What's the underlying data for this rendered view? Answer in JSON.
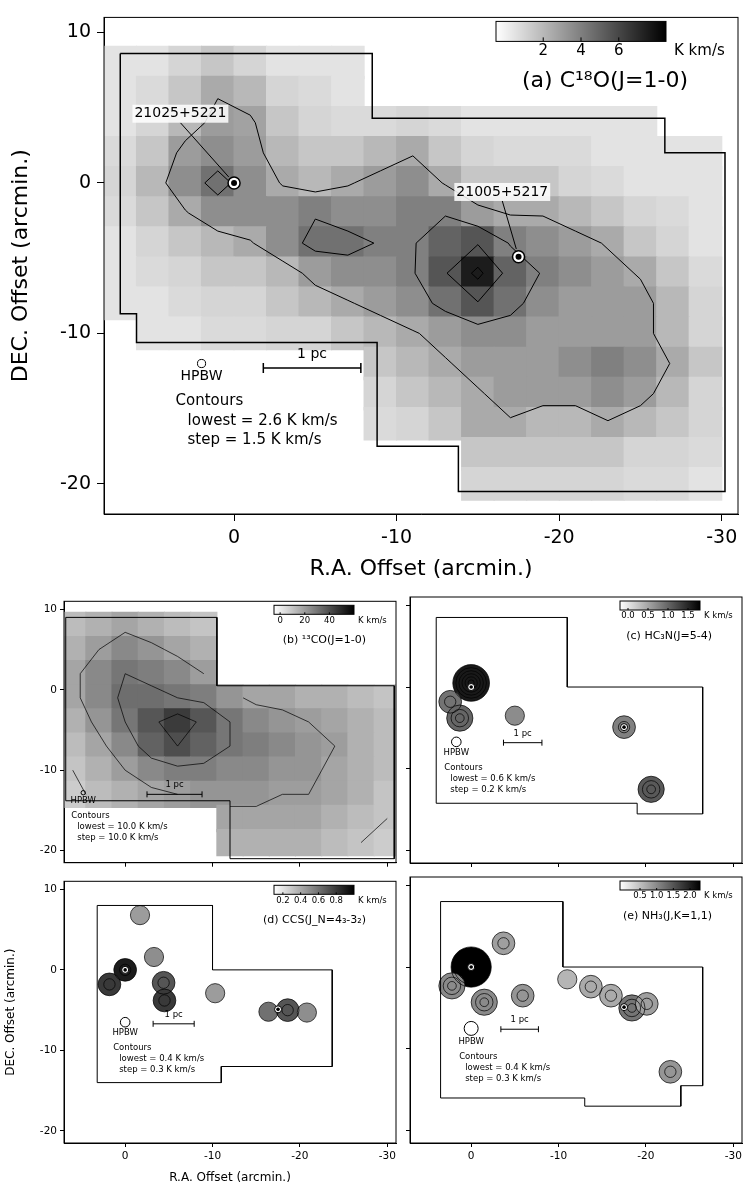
{
  "chart_data": [
    {
      "type": "heatmap",
      "title": "(a) C¹⁸O(J=1-0)",
      "xlabel": "R.A. Offset (arcmin.)",
      "ylabel": "DEC. Offset (arcmin.)",
      "xlim": [
        8,
        -31
      ],
      "ylim": [
        -22,
        11
      ],
      "xticks": [
        0,
        -10,
        -20,
        -30
      ],
      "yticks": [
        10,
        0,
        -10,
        -20
      ],
      "x": [
        7,
        5,
        3,
        1,
        -1,
        -3,
        -5,
        -7,
        -9,
        -11,
        -13,
        -15,
        -17,
        -19,
        -21,
        -23,
        -25,
        -27,
        -29
      ],
      "y": [
        8,
        6,
        4,
        2,
        0,
        -2,
        -4,
        -6,
        -8,
        -10,
        -12,
        -14,
        -16,
        -18,
        -20
      ],
      "z": [
        [
          0.5,
          0.5,
          1,
          1.5,
          1,
          0.5,
          0.5,
          0.5,
          null,
          null,
          null,
          null,
          null,
          null,
          null,
          null,
          null,
          null,
          null
        ],
        [
          0.5,
          0.8,
          1.5,
          2.5,
          2,
          1,
          0.8,
          0.5,
          null,
          null,
          null,
          null,
          null,
          null,
          null,
          null,
          null,
          null,
          null
        ],
        [
          0.5,
          1,
          2,
          3,
          2.8,
          1.5,
          1,
          0.8,
          0.8,
          1,
          0.8,
          0.5,
          0.5,
          0.5,
          0.5,
          0.5,
          0.5,
          null,
          null
        ],
        [
          0.8,
          1.5,
          3,
          3.5,
          3,
          2,
          1.5,
          1.5,
          2,
          2.5,
          1.5,
          1,
          0.8,
          0.8,
          0.8,
          0.5,
          0.5,
          0.5,
          0.5
        ],
        [
          1,
          2,
          3.5,
          4.5,
          3.5,
          2.5,
          2,
          2.5,
          3,
          3.5,
          2.5,
          1.5,
          1.5,
          1.5,
          1,
          0.8,
          0.5,
          0.5,
          0.5
        ],
        [
          0.8,
          1.5,
          2.5,
          3.5,
          3.5,
          3.5,
          4,
          3.5,
          3.5,
          4,
          4,
          3,
          2.5,
          2.5,
          2,
          1.5,
          1,
          0.8,
          0.5
        ],
        [
          0.5,
          1,
          1.5,
          2,
          2.5,
          3.5,
          4.5,
          4.5,
          4,
          4,
          5,
          5.5,
          4,
          3.5,
          3,
          2.5,
          1.5,
          1,
          0.5
        ],
        [
          0.5,
          0.8,
          1,
          1.5,
          1.5,
          2,
          3,
          3.5,
          3.5,
          4,
          5.5,
          7.5,
          5,
          4,
          3.5,
          3,
          2.5,
          1.5,
          0.8
        ],
        [
          0.5,
          0.5,
          0.8,
          1,
          1,
          1.5,
          2,
          2.5,
          3,
          3.5,
          4.5,
          5.5,
          4.5,
          3.5,
          3,
          3,
          3,
          2,
          1
        ],
        [
          null,
          0.5,
          0.5,
          0.8,
          0.8,
          1,
          1,
          1.5,
          2,
          2.5,
          3,
          3.5,
          3.5,
          3,
          3,
          3,
          3,
          2,
          1
        ],
        [
          null,
          null,
          null,
          null,
          null,
          null,
          null,
          null,
          1.5,
          2,
          2.5,
          3,
          3,
          3,
          3.5,
          4,
          3.5,
          2.5,
          1.5
        ],
        [
          null,
          null,
          null,
          null,
          null,
          null,
          null,
          null,
          1,
          1.5,
          2,
          2.5,
          3,
          3,
          3,
          3.5,
          3,
          2,
          1
        ],
        [
          null,
          null,
          null,
          null,
          null,
          null,
          null,
          null,
          0.8,
          1,
          1.5,
          2.5,
          2.5,
          2,
          2,
          2.5,
          2,
          1.5,
          1
        ],
        [
          null,
          null,
          null,
          null,
          null,
          null,
          null,
          null,
          null,
          null,
          null,
          1.5,
          1.5,
          1.5,
          1.5,
          1.5,
          1,
          1,
          0.8
        ],
        [
          null,
          null,
          null,
          null,
          null,
          null,
          null,
          null,
          null,
          null,
          null,
          1,
          1,
          1,
          1,
          1,
          0.8,
          0.8,
          0.5
        ]
      ],
      "colorbar": {
        "range": [
          -0.5,
          8.5
        ],
        "ticks": [
          2,
          4,
          6
        ],
        "label": "K km/s"
      },
      "contours": {
        "lowest": 2.6,
        "step": 1.5
      },
      "contour_text": [
        "Contours",
        "lowest = 2.6 K km/s",
        "step = 1.5 K km/s"
      ],
      "map_boundary": [
        [
          7,
          8.6
        ],
        [
          -8.5,
          8.6
        ],
        [
          -8.5,
          4.3
        ],
        [
          -26.5,
          4.3
        ],
        [
          -26.5,
          2
        ],
        [
          -30.2,
          2
        ],
        [
          -30.2,
          -20.5
        ],
        [
          -13.8,
          -20.5
        ],
        [
          -13.8,
          -17.5
        ],
        [
          -8.8,
          -17.5
        ],
        [
          -8.8,
          -10.6
        ],
        [
          6,
          -10.6
        ],
        [
          6,
          -8.7
        ],
        [
          7,
          -8.7
        ],
        [
          7,
          8.6
        ]
      ],
      "sources": [
        {
          "name": "21025+5221",
          "x": 0,
          "y": 0,
          "label_x": 3.3,
          "label_y": 4.6
        },
        {
          "name": "21005+5217",
          "x": -17.5,
          "y": -4.9,
          "label_x": -16.5,
          "label_y": -0.6
        }
      ],
      "beam": {
        "label": "HPBW",
        "x": 2,
        "y": -12,
        "diameter": 0.5
      },
      "scale_bar": {
        "label": "1 pc",
        "x": [
          -1.8,
          -7.8
        ],
        "y": -12.3
      }
    },
    {
      "type": "heatmap",
      "title": "(b) ¹³CO(J=1-0)",
      "xlim": [
        7,
        -31
      ],
      "ylim": [
        -21.5,
        11
      ],
      "xticks": [
        0,
        -10,
        -20,
        -30
      ],
      "yticks": [
        10,
        0,
        -10,
        -20
      ],
      "tick_labels": "y",
      "x": [
        6,
        3,
        0,
        -3,
        -6,
        -9,
        -12,
        -15,
        -18,
        -21,
        -24,
        -27,
        -30
      ],
      "y": [
        8,
        5,
        2,
        -1,
        -4,
        -7,
        -10,
        -13,
        -16,
        -19
      ],
      "z": [
        [
          12,
          15,
          18,
          15,
          12,
          10,
          null,
          null,
          null,
          null,
          null,
          null,
          null
        ],
        [
          15,
          20,
          25,
          22,
          18,
          15,
          null,
          null,
          null,
          null,
          null,
          null,
          null
        ],
        [
          18,
          25,
          30,
          28,
          25,
          20,
          null,
          null,
          null,
          null,
          null,
          null,
          null
        ],
        [
          18,
          25,
          32,
          32,
          30,
          28,
          22,
          18,
          18,
          15,
          15,
          12,
          10
        ],
        [
          15,
          22,
          30,
          38,
          45,
          38,
          30,
          25,
          22,
          20,
          18,
          15,
          12
        ],
        [
          12,
          18,
          25,
          35,
          40,
          35,
          30,
          28,
          25,
          22,
          20,
          15,
          12
        ],
        [
          10,
          15,
          20,
          25,
          28,
          28,
          25,
          25,
          22,
          22,
          18,
          15,
          12
        ],
        [
          8,
          12,
          15,
          18,
          20,
          22,
          22,
          22,
          20,
          20,
          18,
          15,
          10
        ],
        [
          null,
          null,
          null,
          null,
          null,
          null,
          18,
          18,
          18,
          18,
          15,
          12,
          10
        ],
        [
          null,
          null,
          null,
          null,
          null,
          null,
          15,
          15,
          15,
          15,
          12,
          10,
          8
        ]
      ],
      "colorbar": {
        "range": [
          -5,
          60
        ],
        "ticks": [
          0,
          20,
          40
        ],
        "label": "K km/s"
      },
      "contours": {
        "lowest": 10,
        "step": 10
      },
      "contour_text": [
        "Contours",
        "lowest = 10.0 K km/s",
        "step = 10.0 K km/s"
      ],
      "map_boundary": [
        [
          6.8,
          9
        ],
        [
          -10.5,
          9
        ],
        [
          -10.5,
          0.5
        ],
        [
          -30.8,
          0.5
        ],
        [
          -30.8,
          -21
        ],
        [
          -12,
          -21
        ],
        [
          -12,
          -13.8
        ],
        [
          6.8,
          -13.8
        ],
        [
          6.8,
          9
        ]
      ],
      "beam": {
        "label": "HPBW",
        "x": 4.8,
        "y": -12.8,
        "diameter": 0.5
      },
      "scale_bar": {
        "label": "1 pc",
        "x": [
          -2.5,
          -8.8
        ],
        "y": -13
      }
    },
    {
      "type": "contour",
      "title": "(c) HC₃N(J=5-4)",
      "xlim": [
        7,
        -31
      ],
      "ylim": [
        -21.5,
        11
      ],
      "xticks": [
        0,
        -10,
        -20,
        -30
      ],
      "yticks": [
        10,
        0,
        -10,
        -20
      ],
      "tick_labels": false,
      "peaks": [
        [
          0,
          0.5,
          1.6
        ],
        [
          2.4,
          -1.8,
          0.9
        ],
        [
          1.3,
          -3.8,
          1.0
        ],
        [
          -5,
          -3.5,
          0.7
        ],
        [
          -17.5,
          -4.9,
          0.8
        ],
        [
          -20.6,
          -12.5,
          1.1
        ]
      ],
      "colorbar": {
        "range": [
          -0.2,
          1.8
        ],
        "ticks": [
          {
            "value": 0,
            "label": "0.0"
          },
          0.5,
          {
            "value": 1,
            "label": "1.0"
          },
          1.5
        ],
        "label": "K km/s"
      },
      "contours": {
        "lowest": 0.6,
        "step": 0.2
      },
      "contour_text": [
        "Contours",
        "lowest = 0.6 K km/s",
        "step = 0.2 K km/s"
      ],
      "map_boundary": [
        [
          4,
          8.5
        ],
        [
          -11,
          8.5
        ],
        [
          -11,
          0
        ],
        [
          -26.5,
          0
        ],
        [
          -26.5,
          -15.5
        ],
        [
          -19,
          -15.5
        ],
        [
          -19,
          -14.2
        ],
        [
          4,
          -14.2
        ],
        [
          4,
          8.5
        ]
      ],
      "sources": [
        {
          "x": 0,
          "y": 0
        },
        {
          "x": -17.5,
          "y": -4.9
        }
      ],
      "beam": {
        "label": "HPBW",
        "x": 1.7,
        "y": -6.7,
        "diameter": 1.1
      },
      "scale_bar": {
        "label": "1 pc",
        "x": [
          -3.7,
          -8.1
        ],
        "y": -6.8
      }
    },
    {
      "type": "contour",
      "title": "(d) CCS(J_N=4₃-3₂)",
      "xlabel": "R.A. Offset (arcmin.)",
      "ylabel": "DEC. Offset (arcmin.)",
      "xlim": [
        7,
        -31
      ],
      "ylim": [
        -21.5,
        11
      ],
      "xticks": [
        0,
        -10,
        -20,
        -30
      ],
      "yticks": [
        10,
        0,
        -10,
        -20
      ],
      "peaks": [
        [
          0,
          0,
          0.9
        ],
        [
          1.8,
          -1.8,
          0.8
        ],
        [
          -4.4,
          -1.6,
          0.7
        ],
        [
          -4.5,
          -3.8,
          0.8
        ],
        [
          -3.3,
          1.6,
          0.5
        ],
        [
          -10.3,
          -2.9,
          0.45
        ],
        [
          -16.4,
          -5.2,
          0.6
        ],
        [
          -18.6,
          -5,
          0.7
        ],
        [
          -20.8,
          -5.3,
          0.5
        ],
        [
          -1.7,
          6.8,
          0.45
        ]
      ],
      "colorbar": {
        "range": [
          0.1,
          1.0
        ],
        "ticks": [
          0.2,
          0.4,
          0.6,
          0.8
        ],
        "label": "K km/s"
      },
      "contours": {
        "lowest": 0.4,
        "step": 0.3
      },
      "contour_text": [
        "Contours",
        "lowest = 0.4 K km/s",
        "step = 0.3 K km/s"
      ],
      "map_boundary": [
        [
          3.2,
          8
        ],
        [
          -10,
          8
        ],
        [
          -10,
          0
        ],
        [
          -23.7,
          0
        ],
        [
          -23.7,
          -12
        ],
        [
          -11,
          -12
        ],
        [
          -11,
          -14
        ],
        [
          3.2,
          -14
        ],
        [
          3.2,
          8
        ]
      ],
      "sources": [
        {
          "x": 0,
          "y": 0
        },
        {
          "x": -17.5,
          "y": -4.9
        }
      ],
      "beam": {
        "label": "HPBW",
        "x": 0,
        "y": -6.5,
        "diameter": 1.1
      },
      "scale_bar": {
        "label": "1 pc",
        "x": [
          -3.2,
          -7.9
        ],
        "y": -6.7
      }
    },
    {
      "type": "contour",
      "title": "(e) NH₃(J,K=1,1)",
      "xlim": [
        7,
        -31
      ],
      "ylim": [
        -21.5,
        11
      ],
      "xticks": [
        0,
        -10,
        -20,
        -30
      ],
      "yticks": [
        10,
        0,
        -10,
        -20
      ],
      "tick_labels": "x",
      "peaks": [
        [
          0,
          0,
          2.3
        ],
        [
          2.2,
          -2.3,
          1.0
        ],
        [
          -1.5,
          -4.3,
          1.0
        ],
        [
          -3.7,
          2.9,
          0.8
        ],
        [
          -5.9,
          -3.5,
          0.9
        ],
        [
          -11,
          -1.5,
          0.6
        ],
        [
          -13.7,
          -2.4,
          0.7
        ],
        [
          -16,
          -3.5,
          0.7
        ],
        [
          -18.4,
          -5,
          1.2
        ],
        [
          -20.1,
          -4.5,
          0.8
        ],
        [
          -22.8,
          -12.8,
          0.9
        ]
      ],
      "colorbar": {
        "range": [
          -0.1,
          2.3
        ],
        "ticks": [
          0.5,
          {
            "value": 1,
            "label": "1.0"
          },
          1.5,
          {
            "value": 2,
            "label": "2.0"
          }
        ],
        "label": "K km/s"
      },
      "contours": {
        "lowest": 0.4,
        "step": 0.3
      },
      "contour_text": [
        "Contours",
        "lowest = 0.4 K km/s",
        "step = 0.3 K km/s"
      ],
      "map_boundary": [
        [
          3.5,
          8
        ],
        [
          -10.5,
          8
        ],
        [
          -10.5,
          0
        ],
        [
          -26.5,
          0
        ],
        [
          -26.5,
          -14.5
        ],
        [
          -24,
          -14.5
        ],
        [
          -24,
          -17
        ],
        [
          -13,
          -17
        ],
        [
          -13,
          -16
        ],
        [
          3.5,
          -16
        ],
        [
          3.5,
          8
        ]
      ],
      "sources": [
        {
          "x": 0,
          "y": 0
        },
        {
          "x": -17.5,
          "y": -4.9
        }
      ],
      "beam": {
        "label": "HPBW",
        "x": 0,
        "y": -7.5,
        "diameter": 1.6
      },
      "scale_bar": {
        "label": "1 pc",
        "x": [
          -3.4,
          -7.7
        ],
        "y": -7.6
      }
    }
  ]
}
